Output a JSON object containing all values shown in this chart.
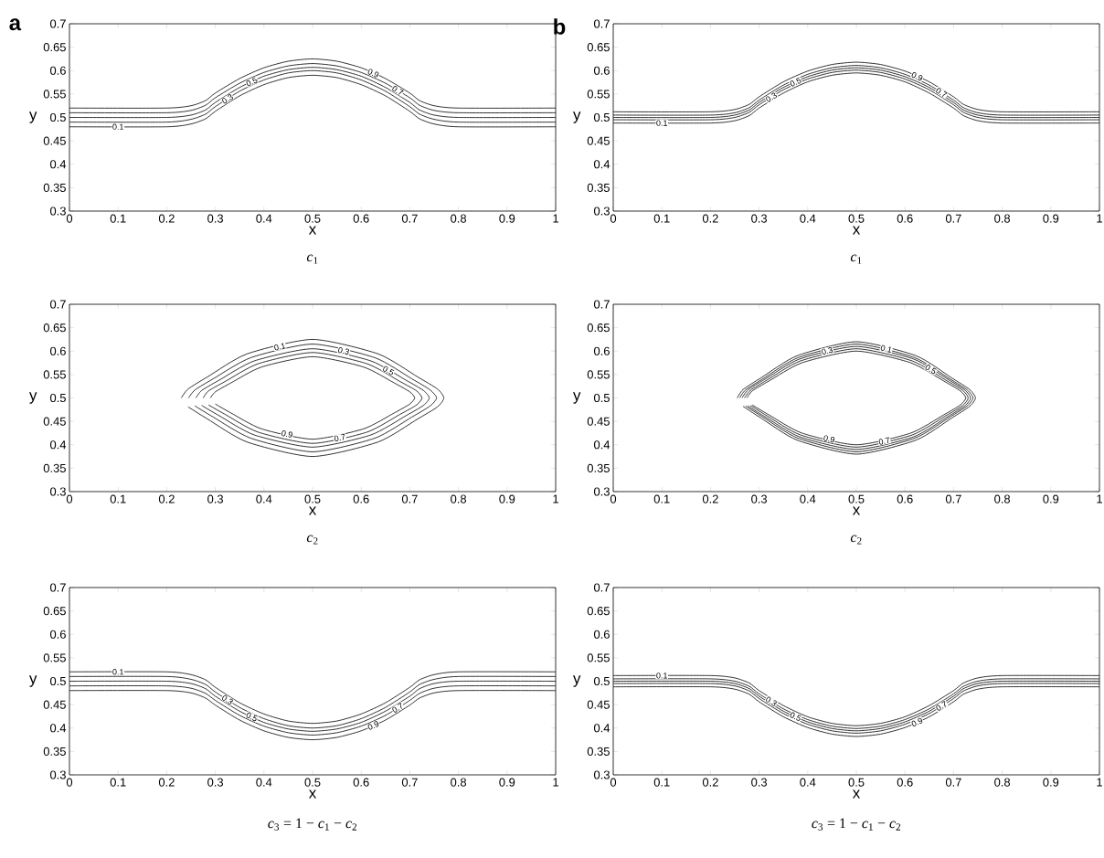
{
  "chart_data": [
    {
      "type": "line",
      "title": "a",
      "xlabel": "x",
      "ylabel": "y",
      "annotations": [
        "*c*$_{1}$"
      ],
      "xlim": [
        0,
        1
      ],
      "ylim": [
        0.3,
        0.7
      ],
      "xticks": [
        0,
        0.1,
        0.2,
        0.3,
        0.4,
        0.5,
        0.6,
        0.7,
        0.8,
        0.9,
        1
      ],
      "yticks": [
        0.3,
        0.35,
        0.4,
        0.45,
        0.5,
        0.55,
        0.6,
        0.65,
        0.7
      ],
      "marker": "none",
      "line_style": "solid",
      "series": [
        {
          "name": "0.1",
          "color": "#000000",
          "x": [
            0,
            0.2,
            0.25,
            0.28,
            0.3,
            0.35,
            0.4,
            0.45,
            0.5,
            0.55,
            0.6,
            0.65,
            0.7,
            0.72,
            0.75,
            0.8,
            1
          ],
          "values": [
            0.48,
            0.48,
            0.486,
            0.497,
            0.513,
            0.546,
            0.57,
            0.585,
            0.59,
            0.585,
            0.57,
            0.546,
            0.513,
            0.497,
            0.486,
            0.48,
            0.48
          ]
        },
        {
          "name": "0.3",
          "color": "#000000",
          "x": [
            0,
            0.2,
            0.25,
            0.28,
            0.3,
            0.35,
            0.4,
            0.45,
            0.5,
            0.55,
            0.6,
            0.65,
            0.7,
            0.72,
            0.75,
            0.8,
            1
          ],
          "values": [
            0.49,
            0.49,
            0.496,
            0.507,
            0.523,
            0.556,
            0.58,
            0.595,
            0.6,
            0.595,
            0.58,
            0.556,
            0.523,
            0.507,
            0.496,
            0.49,
            0.49
          ]
        },
        {
          "name": "0.5",
          "color": "#000000",
          "x": [
            0,
            0.2,
            0.25,
            0.28,
            0.3,
            0.35,
            0.4,
            0.45,
            0.5,
            0.55,
            0.6,
            0.65,
            0.7,
            0.72,
            0.75,
            0.8,
            1
          ],
          "values": [
            0.5,
            0.5,
            0.505,
            0.516,
            0.532,
            0.564,
            0.588,
            0.602,
            0.607,
            0.602,
            0.588,
            0.564,
            0.532,
            0.516,
            0.505,
            0.5,
            0.5
          ]
        },
        {
          "name": "0.7",
          "color": "#000000",
          "x": [
            0,
            0.2,
            0.25,
            0.28,
            0.3,
            0.35,
            0.4,
            0.45,
            0.5,
            0.55,
            0.6,
            0.65,
            0.7,
            0.72,
            0.75,
            0.8,
            1
          ],
          "values": [
            0.51,
            0.51,
            0.515,
            0.526,
            0.542,
            0.573,
            0.596,
            0.61,
            0.615,
            0.61,
            0.596,
            0.573,
            0.542,
            0.526,
            0.515,
            0.51,
            0.51
          ]
        },
        {
          "name": "0.9",
          "color": "#000000",
          "x": [
            0,
            0.2,
            0.25,
            0.28,
            0.3,
            0.35,
            0.4,
            0.45,
            0.5,
            0.55,
            0.6,
            0.65,
            0.7,
            0.72,
            0.75,
            0.8,
            1
          ],
          "values": [
            0.52,
            0.52,
            0.525,
            0.536,
            0.552,
            0.583,
            0.606,
            0.62,
            0.625,
            0.62,
            0.606,
            0.583,
            0.552,
            0.536,
            0.525,
            0.52,
            0.52
          ]
        }
      ]
    },
    {
      "type": "line",
      "title": "b",
      "xlabel": "x",
      "ylabel": "y",
      "annotations": [
        "*c*$_{1}$"
      ],
      "xlim": [
        0,
        1
      ],
      "ylim": [
        0.3,
        0.7
      ],
      "xticks": [
        0,
        0.1,
        0.2,
        0.3,
        0.4,
        0.5,
        0.6,
        0.7,
        0.8,
        0.9,
        1
      ],
      "yticks": [
        0.3,
        0.35,
        0.4,
        0.45,
        0.5,
        0.55,
        0.6,
        0.65,
        0.7
      ],
      "marker": "none",
      "line_style": "solid",
      "series": [
        {
          "name": "0.1",
          "color": "#000000",
          "x": [
            0,
            0.2,
            0.25,
            0.28,
            0.3,
            0.35,
            0.4,
            0.45,
            0.5,
            0.55,
            0.6,
            0.65,
            0.7,
            0.72,
            0.75,
            0.8,
            1
          ],
          "values": [
            0.488,
            0.488,
            0.493,
            0.504,
            0.52,
            0.552,
            0.576,
            0.59,
            0.595,
            0.59,
            0.576,
            0.552,
            0.52,
            0.504,
            0.493,
            0.488,
            0.488
          ]
        },
        {
          "name": "0.3",
          "color": "#000000",
          "x": [
            0,
            0.2,
            0.25,
            0.28,
            0.3,
            0.35,
            0.4,
            0.45,
            0.5,
            0.55,
            0.6,
            0.65,
            0.7,
            0.72,
            0.75,
            0.8,
            1
          ],
          "values": [
            0.495,
            0.495,
            0.5,
            0.511,
            0.527,
            0.559,
            0.582,
            0.596,
            0.601,
            0.596,
            0.582,
            0.559,
            0.527,
            0.511,
            0.5,
            0.495,
            0.495
          ]
        },
        {
          "name": "0.5",
          "color": "#000000",
          "x": [
            0,
            0.2,
            0.25,
            0.28,
            0.3,
            0.35,
            0.4,
            0.45,
            0.5,
            0.55,
            0.6,
            0.65,
            0.7,
            0.72,
            0.75,
            0.8,
            1
          ],
          "values": [
            0.5,
            0.5,
            0.505,
            0.516,
            0.532,
            0.564,
            0.587,
            0.601,
            0.606,
            0.601,
            0.587,
            0.564,
            0.532,
            0.516,
            0.505,
            0.5,
            0.5
          ]
        },
        {
          "name": "0.7",
          "color": "#000000",
          "x": [
            0,
            0.2,
            0.25,
            0.28,
            0.3,
            0.35,
            0.4,
            0.45,
            0.5,
            0.55,
            0.6,
            0.65,
            0.7,
            0.72,
            0.75,
            0.8,
            1
          ],
          "values": [
            0.505,
            0.505,
            0.51,
            0.521,
            0.537,
            0.569,
            0.592,
            0.606,
            0.611,
            0.606,
            0.592,
            0.569,
            0.537,
            0.521,
            0.51,
            0.505,
            0.505
          ]
        },
        {
          "name": "0.9",
          "color": "#000000",
          "x": [
            0,
            0.2,
            0.25,
            0.28,
            0.3,
            0.35,
            0.4,
            0.45,
            0.5,
            0.55,
            0.6,
            0.65,
            0.7,
            0.72,
            0.75,
            0.8,
            1
          ],
          "values": [
            0.512,
            0.512,
            0.517,
            0.528,
            0.544,
            0.576,
            0.599,
            0.613,
            0.618,
            0.613,
            0.599,
            0.576,
            0.544,
            0.528,
            0.517,
            0.512,
            0.512
          ]
        }
      ]
    },
    {
      "type": "line",
      "xlabel": "x",
      "ylabel": "y",
      "annotations": [
        "*c*$_{2}$"
      ],
      "xlim": [
        0,
        1
      ],
      "ylim": [
        0.3,
        0.7
      ],
      "xticks": [
        0,
        0.1,
        0.2,
        0.3,
        0.4,
        0.5,
        0.6,
        0.7,
        0.8,
        0.9,
        1
      ],
      "yticks": [
        0.3,
        0.35,
        0.4,
        0.45,
        0.5,
        0.55,
        0.6,
        0.65,
        0.7
      ],
      "marker": "none",
      "line_style": "solid",
      "series": [
        {
          "name": "0.1",
          "color": "#000000",
          "x": [
            0.23,
            0.244,
            0.284,
            0.365,
            0.5,
            0.635,
            0.716,
            0.757,
            0.77,
            0.757,
            0.716,
            0.635,
            0.5,
            0.365,
            0.284,
            0.244
          ],
          "values": [
            0.5,
            0.519,
            0.545,
            0.594,
            0.625,
            0.594,
            0.545,
            0.519,
            0.5,
            0.481,
            0.455,
            0.406,
            0.375,
            0.406,
            0.455,
            0.481
          ]
        },
        {
          "name": "0.3",
          "color": "#000000",
          "x": [
            0.245,
            0.258,
            0.296,
            0.373,
            0.5,
            0.628,
            0.704,
            0.742,
            0.755,
            0.742,
            0.704,
            0.628,
            0.5,
            0.373,
            0.296,
            0.258
          ],
          "values": [
            0.5,
            0.517,
            0.541,
            0.586,
            0.615,
            0.586,
            0.541,
            0.517,
            0.5,
            0.483,
            0.459,
            0.414,
            0.385,
            0.414,
            0.459,
            0.483
          ]
        },
        {
          "name": "0.5",
          "color": "#000000",
          "x": [
            0.26,
            0.272,
            0.308,
            0.38,
            0.5,
            0.62,
            0.692,
            0.728,
            0.74,
            0.728,
            0.692,
            0.62,
            0.5,
            0.38,
            0.308,
            0.272
          ],
          "values": [
            0.5,
            0.516,
            0.538,
            0.579,
            0.605,
            0.579,
            0.538,
            0.516,
            0.5,
            0.484,
            0.462,
            0.421,
            0.395,
            0.421,
            0.462,
            0.484
          ]
        },
        {
          "name": "0.7",
          "color": "#000000",
          "x": [
            0.275,
            0.286,
            0.32,
            0.388,
            0.5,
            0.612,
            0.68,
            0.714,
            0.725,
            0.714,
            0.68,
            0.612,
            0.5,
            0.388,
            0.32,
            0.286
          ],
          "values": [
            0.5,
            0.515,
            0.535,
            0.573,
            0.597,
            0.573,
            0.535,
            0.515,
            0.5,
            0.485,
            0.465,
            0.427,
            0.403,
            0.427,
            0.465,
            0.485
          ]
        },
        {
          "name": "0.9",
          "color": "#000000",
          "x": [
            0.29,
            0.3,
            0.332,
            0.395,
            0.5,
            0.605,
            0.668,
            0.7,
            0.71,
            0.7,
            0.668,
            0.605,
            0.5,
            0.395,
            0.332,
            0.3
          ],
          "values": [
            0.5,
            0.513,
            0.532,
            0.566,
            0.588,
            0.566,
            0.532,
            0.513,
            0.5,
            0.487,
            0.468,
            0.434,
            0.412,
            0.434,
            0.468,
            0.487
          ]
        }
      ]
    },
    {
      "type": "line",
      "xlabel": "x",
      "ylabel": "y",
      "annotations": [
        "*c*$_{2}$"
      ],
      "xlim": [
        0,
        1
      ],
      "ylim": [
        0.3,
        0.7
      ],
      "xticks": [
        0,
        0.1,
        0.2,
        0.3,
        0.4,
        0.5,
        0.6,
        0.7,
        0.8,
        0.9,
        1
      ],
      "yticks": [
        0.3,
        0.35,
        0.4,
        0.45,
        0.5,
        0.55,
        0.6,
        0.65,
        0.7
      ],
      "marker": "none",
      "line_style": "solid",
      "series": [
        {
          "name": "0.1",
          "color": "#000000",
          "x": [
            0.255,
            0.267,
            0.304,
            0.378,
            0.5,
            0.623,
            0.696,
            0.733,
            0.745,
            0.733,
            0.696,
            0.623,
            0.5,
            0.378,
            0.304,
            0.267
          ],
          "values": [
            0.5,
            0.518,
            0.543,
            0.59,
            0.62,
            0.59,
            0.543,
            0.518,
            0.5,
            0.482,
            0.457,
            0.41,
            0.38,
            0.41,
            0.457,
            0.482
          ]
        },
        {
          "name": "0.3",
          "color": "#000000",
          "x": [
            0.26,
            0.272,
            0.308,
            0.38,
            0.5,
            0.62,
            0.692,
            0.728,
            0.74,
            0.728,
            0.692,
            0.62,
            0.5,
            0.38,
            0.308,
            0.272
          ],
          "values": [
            0.5,
            0.517,
            0.541,
            0.586,
            0.615,
            0.586,
            0.541,
            0.517,
            0.5,
            0.483,
            0.459,
            0.414,
            0.385,
            0.414,
            0.459,
            0.483
          ]
        },
        {
          "name": "0.5",
          "color": "#000000",
          "x": [
            0.265,
            0.277,
            0.312,
            0.383,
            0.5,
            0.618,
            0.688,
            0.723,
            0.735,
            0.723,
            0.688,
            0.618,
            0.5,
            0.383,
            0.312,
            0.277
          ],
          "values": [
            0.5,
            0.517,
            0.54,
            0.583,
            0.61,
            0.583,
            0.54,
            0.517,
            0.5,
            0.483,
            0.46,
            0.417,
            0.39,
            0.417,
            0.46,
            0.483
          ]
        },
        {
          "name": "0.7",
          "color": "#000000",
          "x": [
            0.27,
            0.282,
            0.316,
            0.385,
            0.5,
            0.615,
            0.684,
            0.719,
            0.73,
            0.719,
            0.684,
            0.615,
            0.5,
            0.385,
            0.316,
            0.282
          ],
          "values": [
            0.5,
            0.516,
            0.538,
            0.579,
            0.605,
            0.579,
            0.538,
            0.516,
            0.5,
            0.484,
            0.462,
            0.421,
            0.395,
            0.421,
            0.462,
            0.484
          ]
        },
        {
          "name": "0.9",
          "color": "#000000",
          "x": [
            0.275,
            0.286,
            0.32,
            0.388,
            0.5,
            0.612,
            0.68,
            0.714,
            0.725,
            0.714,
            0.68,
            0.612,
            0.5,
            0.388,
            0.32,
            0.286
          ],
          "values": [
            0.5,
            0.515,
            0.536,
            0.575,
            0.6,
            0.575,
            0.536,
            0.515,
            0.5,
            0.485,
            0.464,
            0.425,
            0.4,
            0.425,
            0.464,
            0.485
          ]
        }
      ]
    },
    {
      "type": "line",
      "xlabel": "x",
      "ylabel": "y",
      "annotations": [
        "*c*$_{3}$ = 1 − *c*$_{1}$ − *c*$_{2}$"
      ],
      "xlim": [
        0,
        1
      ],
      "ylim": [
        0.3,
        0.7
      ],
      "xticks": [
        0,
        0.1,
        0.2,
        0.3,
        0.4,
        0.5,
        0.6,
        0.7,
        0.8,
        0.9,
        1
      ],
      "yticks": [
        0.3,
        0.35,
        0.4,
        0.45,
        0.5,
        0.55,
        0.6,
        0.65,
        0.7
      ],
      "marker": "none",
      "line_style": "solid",
      "series": [
        {
          "name": "0.1",
          "color": "#000000",
          "x": [
            0,
            0.2,
            0.25,
            0.28,
            0.3,
            0.35,
            0.4,
            0.45,
            0.5,
            0.55,
            0.6,
            0.65,
            0.7,
            0.72,
            0.75,
            0.8,
            1
          ],
          "values": [
            0.52,
            0.52,
            0.514,
            0.503,
            0.487,
            0.454,
            0.43,
            0.415,
            0.41,
            0.415,
            0.43,
            0.454,
            0.487,
            0.503,
            0.514,
            0.52,
            0.52
          ]
        },
        {
          "name": "0.3",
          "color": "#000000",
          "x": [
            0,
            0.2,
            0.25,
            0.28,
            0.3,
            0.35,
            0.4,
            0.45,
            0.5,
            0.55,
            0.6,
            0.65,
            0.7,
            0.72,
            0.75,
            0.8,
            1
          ],
          "values": [
            0.51,
            0.51,
            0.504,
            0.493,
            0.477,
            0.444,
            0.42,
            0.405,
            0.4,
            0.405,
            0.42,
            0.444,
            0.477,
            0.493,
            0.504,
            0.51,
            0.51
          ]
        },
        {
          "name": "0.5",
          "color": "#000000",
          "x": [
            0,
            0.2,
            0.25,
            0.28,
            0.3,
            0.35,
            0.4,
            0.45,
            0.5,
            0.55,
            0.6,
            0.65,
            0.7,
            0.72,
            0.75,
            0.8,
            1
          ],
          "values": [
            0.5,
            0.5,
            0.495,
            0.484,
            0.468,
            0.436,
            0.412,
            0.398,
            0.393,
            0.398,
            0.412,
            0.436,
            0.468,
            0.484,
            0.495,
            0.5,
            0.5
          ]
        },
        {
          "name": "0.7",
          "color": "#000000",
          "x": [
            0,
            0.2,
            0.25,
            0.28,
            0.3,
            0.35,
            0.4,
            0.45,
            0.5,
            0.55,
            0.6,
            0.65,
            0.7,
            0.72,
            0.75,
            0.8,
            1
          ],
          "values": [
            0.49,
            0.49,
            0.485,
            0.474,
            0.459,
            0.427,
            0.404,
            0.39,
            0.385,
            0.39,
            0.404,
            0.427,
            0.459,
            0.474,
            0.485,
            0.49,
            0.49
          ]
        },
        {
          "name": "0.9",
          "color": "#000000",
          "x": [
            0,
            0.2,
            0.25,
            0.28,
            0.3,
            0.35,
            0.4,
            0.45,
            0.5,
            0.55,
            0.6,
            0.65,
            0.7,
            0.72,
            0.75,
            0.8,
            1
          ],
          "values": [
            0.48,
            0.48,
            0.475,
            0.464,
            0.449,
            0.417,
            0.394,
            0.38,
            0.375,
            0.38,
            0.394,
            0.417,
            0.449,
            0.464,
            0.475,
            0.48,
            0.48
          ]
        }
      ]
    },
    {
      "type": "line",
      "xlabel": "x",
      "ylabel": "y",
      "annotations": [
        "*c*$_{3}$ = 1 − *c*$_{1}$ − *c*$_{2}$"
      ],
      "xlim": [
        0,
        1
      ],
      "ylim": [
        0.3,
        0.7
      ],
      "xticks": [
        0,
        0.1,
        0.2,
        0.3,
        0.4,
        0.5,
        0.6,
        0.7,
        0.8,
        0.9,
        1
      ],
      "yticks": [
        0.3,
        0.35,
        0.4,
        0.45,
        0.5,
        0.55,
        0.6,
        0.65,
        0.7
      ],
      "marker": "none",
      "line_style": "solid",
      "series": [
        {
          "name": "0.1",
          "color": "#000000",
          "x": [
            0,
            0.2,
            0.25,
            0.28,
            0.3,
            0.35,
            0.4,
            0.45,
            0.5,
            0.55,
            0.6,
            0.65,
            0.7,
            0.72,
            0.75,
            0.8,
            1
          ],
          "values": [
            0.512,
            0.512,
            0.507,
            0.496,
            0.48,
            0.448,
            0.424,
            0.41,
            0.405,
            0.41,
            0.424,
            0.448,
            0.48,
            0.496,
            0.507,
            0.512,
            0.512
          ]
        },
        {
          "name": "0.3",
          "color": "#000000",
          "x": [
            0,
            0.2,
            0.25,
            0.28,
            0.3,
            0.35,
            0.4,
            0.45,
            0.5,
            0.55,
            0.6,
            0.65,
            0.7,
            0.72,
            0.75,
            0.8,
            1
          ],
          "values": [
            0.505,
            0.505,
            0.5,
            0.489,
            0.473,
            0.441,
            0.418,
            0.404,
            0.399,
            0.404,
            0.418,
            0.441,
            0.473,
            0.489,
            0.5,
            0.505,
            0.505
          ]
        },
        {
          "name": "0.5",
          "color": "#000000",
          "x": [
            0,
            0.2,
            0.25,
            0.28,
            0.3,
            0.35,
            0.4,
            0.45,
            0.5,
            0.55,
            0.6,
            0.65,
            0.7,
            0.72,
            0.75,
            0.8,
            1
          ],
          "values": [
            0.5,
            0.5,
            0.495,
            0.484,
            0.468,
            0.436,
            0.413,
            0.399,
            0.394,
            0.399,
            0.413,
            0.436,
            0.468,
            0.484,
            0.495,
            0.5,
            0.5
          ]
        },
        {
          "name": "0.7",
          "color": "#000000",
          "x": [
            0,
            0.2,
            0.25,
            0.28,
            0.3,
            0.35,
            0.4,
            0.45,
            0.5,
            0.55,
            0.6,
            0.65,
            0.7,
            0.72,
            0.75,
            0.8,
            1
          ],
          "values": [
            0.495,
            0.495,
            0.49,
            0.479,
            0.463,
            0.431,
            0.408,
            0.394,
            0.389,
            0.394,
            0.408,
            0.431,
            0.463,
            0.479,
            0.49,
            0.495,
            0.495
          ]
        },
        {
          "name": "0.9",
          "color": "#000000",
          "x": [
            0,
            0.2,
            0.25,
            0.28,
            0.3,
            0.35,
            0.4,
            0.45,
            0.5,
            0.55,
            0.6,
            0.65,
            0.7,
            0.72,
            0.75,
            0.8,
            1
          ],
          "values": [
            0.488,
            0.488,
            0.483,
            0.472,
            0.456,
            0.424,
            0.401,
            0.387,
            0.382,
            0.387,
            0.401,
            0.424,
            0.456,
            0.472,
            0.483,
            0.488,
            0.488
          ]
        }
      ]
    }
  ]
}
